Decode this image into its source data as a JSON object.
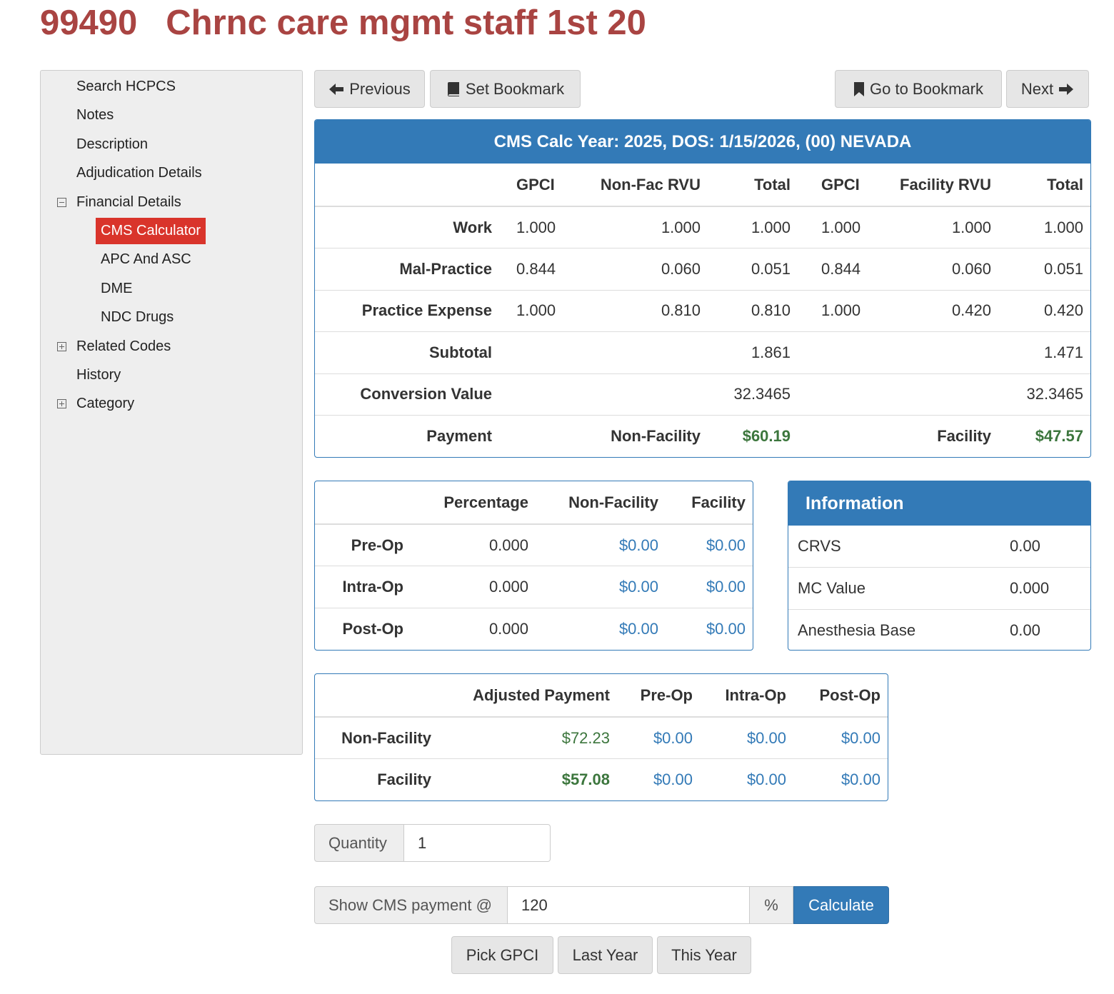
{
  "header": {
    "code": "99490",
    "title": "Chrnc care mgmt staff 1st 20"
  },
  "sidebar": {
    "items": [
      {
        "label": "Search HCPCS",
        "level": 0
      },
      {
        "label": "Notes",
        "level": 0
      },
      {
        "label": "Description",
        "level": 0
      },
      {
        "label": "Adjudication Details",
        "level": 0
      },
      {
        "label": "Financial Details",
        "level": 0,
        "toggle": "minus"
      },
      {
        "label": "CMS Calculator",
        "level": 1,
        "active": true
      },
      {
        "label": "APC And ASC",
        "level": 1
      },
      {
        "label": "DME",
        "level": 1
      },
      {
        "label": "NDC Drugs",
        "level": 1
      },
      {
        "label": "Related Codes",
        "level": 0,
        "toggle": "plus"
      },
      {
        "label": "History",
        "level": 0
      },
      {
        "label": "Category",
        "level": 0,
        "toggle": "plus"
      }
    ]
  },
  "nav": {
    "previous": "Previous",
    "set_bookmark": "Set Bookmark",
    "go_to_bookmark": "Go to Bookmark",
    "next": "Next"
  },
  "cms_table": {
    "title": "CMS Calc Year: 2025, DOS: 1/15/2026, (00) NEVADA",
    "headers": [
      "GPCI",
      "Non-Fac RVU",
      "Total",
      "GPCI",
      "Facility RVU",
      "Total"
    ],
    "rows": [
      [
        "Work",
        "1.000",
        "1.000",
        "1.000",
        "1.000",
        "1.000",
        "1.000"
      ],
      [
        "Mal-Practice",
        "0.844",
        "0.060",
        "0.051",
        "0.844",
        "0.060",
        "0.051"
      ],
      [
        "Practice Expense",
        "1.000",
        "0.810",
        "0.810",
        "1.000",
        "0.420",
        "0.420"
      ],
      [
        "Subtotal",
        null,
        null,
        "1.861",
        null,
        null,
        "1.471"
      ],
      [
        "Conversion Value",
        null,
        null,
        "32.3465",
        null,
        null,
        "32.3465"
      ],
      [
        "Payment",
        null,
        "Non-Facility",
        "$60.19",
        null,
        "Facility",
        "$47.57"
      ]
    ]
  },
  "percent_table": {
    "headers": [
      "Percentage",
      "Non-Facility",
      "Facility"
    ],
    "rows": [
      [
        "Pre-Op",
        "0.000",
        "$0.00",
        "$0.00"
      ],
      [
        "Intra-Op",
        "0.000",
        "$0.00",
        "$0.00"
      ],
      [
        "Post-Op",
        "0.000",
        "$0.00",
        "$0.00"
      ]
    ]
  },
  "information": {
    "title": "Information",
    "rows": [
      [
        "CRVS",
        "0.00"
      ],
      [
        "MC Value",
        "0.000"
      ],
      [
        "Anesthesia Base",
        "0.00"
      ]
    ]
  },
  "adjusted_table": {
    "headers": [
      "Adjusted Payment",
      "Pre-Op",
      "Intra-Op",
      "Post-Op"
    ],
    "rows": [
      [
        "Non-Facility",
        "$72.23",
        "$0.00",
        "$0.00",
        "$0.00"
      ],
      [
        "Facility",
        "$57.08",
        "$0.00",
        "$0.00",
        "$0.00"
      ]
    ]
  },
  "form": {
    "quantity_label": "Quantity",
    "quantity_value": "1",
    "cms_payment_label": "Show CMS payment @",
    "cms_payment_value": "120",
    "percent_sign": "%",
    "calculate": "Calculate",
    "pick_gpci": "Pick GPCI",
    "last_year": "Last Year",
    "this_year": "This Year"
  }
}
